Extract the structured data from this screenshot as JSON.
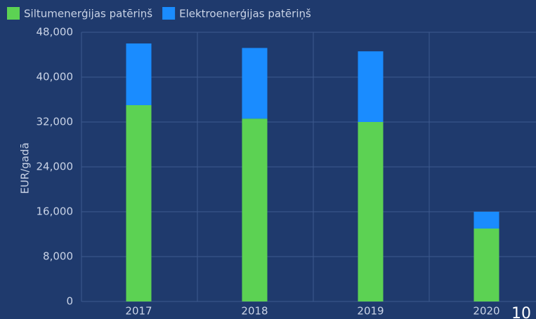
{
  "chart_data": {
    "type": "stacked_bar",
    "categories": [
      "2017",
      "2018",
      "2019",
      "2020"
    ],
    "series": [
      {
        "name": "Siltumenerģijas patēriņš",
        "color": "#5cd253",
        "values": [
          35000,
          32600,
          32000,
          13000
        ]
      },
      {
        "name": "Elektroenerģijas patēriņš",
        "color": "#1a8cff",
        "values": [
          11000,
          12600,
          12600,
          3000
        ]
      }
    ],
    "ylabel": "EUR/gadā",
    "ylim": [
      0,
      48000
    ],
    "yticks": [
      0,
      {
        "value": 8000,
        "label": "8,000"
      },
      {
        "value": 16000,
        "label": "16,000"
      },
      {
        "value": 24000,
        "label": "24,000"
      },
      {
        "value": 32000,
        "label": "32,000"
      },
      {
        "value": 40000,
        "label": "40,000"
      },
      {
        "value": 48000,
        "label": "48,000"
      }
    ],
    "grid": true,
    "legend": "top-left",
    "page_number": "10"
  }
}
